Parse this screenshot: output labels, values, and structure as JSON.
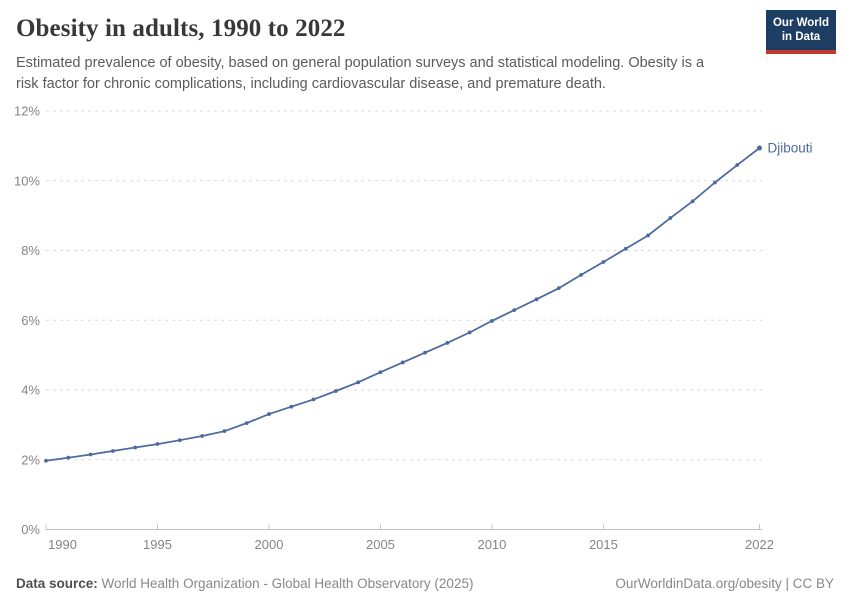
{
  "header": {
    "title": "Obesity in adults, 1990 to 2022",
    "subtitle": "Estimated prevalence of obesity, based on general population surveys and statistical modeling. Obesity is a risk factor for chronic complications, including cardiovascular disease, and premature death.",
    "logo": {
      "line1": "Our World",
      "line2": "in Data"
    }
  },
  "chart_data": {
    "type": "line",
    "title": "Obesity in adults, 1990 to 2022",
    "x": [
      1990,
      1991,
      1992,
      1993,
      1994,
      1995,
      1996,
      1997,
      1998,
      1999,
      2000,
      2001,
      2002,
      2003,
      2004,
      2005,
      2006,
      2007,
      2008,
      2009,
      2010,
      2011,
      2012,
      2013,
      2014,
      2015,
      2016,
      2017,
      2018,
      2019,
      2020,
      2021,
      2022
    ],
    "series": [
      {
        "name": "Djibouti",
        "color": "#4c6a9c",
        "values": [
          1.97,
          2.06,
          2.15,
          2.25,
          2.35,
          2.45,
          2.56,
          2.68,
          2.82,
          3.05,
          3.31,
          3.52,
          3.73,
          3.97,
          4.22,
          4.51,
          4.79,
          5.07,
          5.35,
          5.65,
          5.98,
          6.29,
          6.6,
          6.92,
          7.3,
          7.67,
          8.05,
          8.43,
          8.93,
          9.41,
          9.95,
          10.45,
          10.94
        ]
      }
    ],
    "ylim": [
      0,
      12
    ],
    "ylabel": "",
    "xlabel": "",
    "unit": "%",
    "yticks": [
      "0%",
      "2%",
      "4%",
      "6%",
      "8%",
      "10%",
      "12%"
    ],
    "ytick_values": [
      0,
      2,
      4,
      6,
      8,
      10,
      12
    ],
    "xticks": [
      1990,
      1995,
      2000,
      2005,
      2010,
      2015,
      2022
    ],
    "grid": "horizontal-dashed",
    "legend_position": "end-of-line-label"
  },
  "footer": {
    "datasource_label": "Data source:",
    "datasource_value": " World Health Organization - Global Health Observatory (2025)",
    "credit": "OurWorldinData.org/obesity | CC BY"
  },
  "colors": {
    "line": "#4c6a9c",
    "gridline": "#dadada",
    "axis": "#c2c2c2",
    "tick_label": "#858585",
    "logo_bg": "#1d3d63",
    "logo_red": "#c0392c"
  }
}
